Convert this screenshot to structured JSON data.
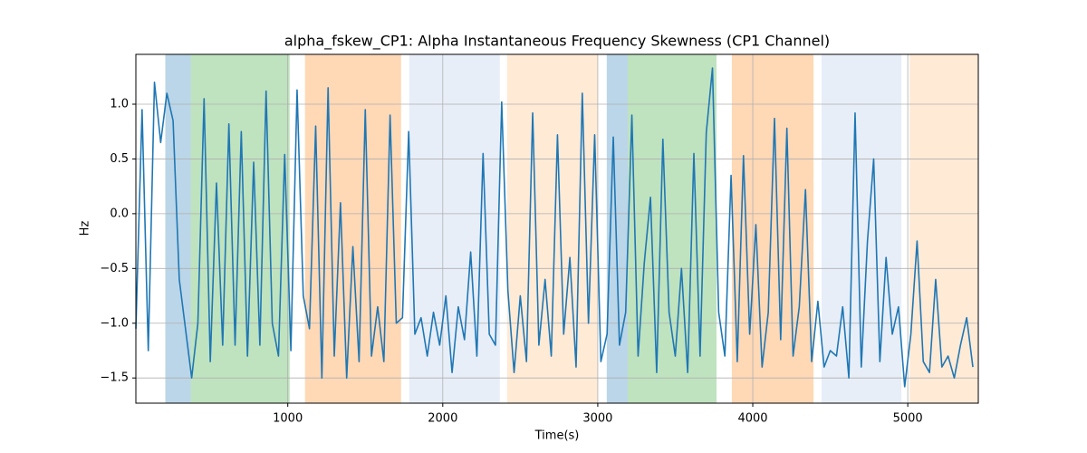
{
  "chart_data": {
    "type": "line",
    "title": "alpha_fskew_CP1: Alpha Instantaneous Frequency Skewness (CP1 Channel)",
    "xlabel": "Time(s)",
    "ylabel": "Hz",
    "xlim": [
      20,
      5455
    ],
    "ylim": [
      -1.73,
      1.455
    ],
    "xticks": [
      1000,
      2000,
      3000,
      4000,
      5000
    ],
    "yticks": [
      {
        "value": -1.5,
        "label": "−1.5"
      },
      {
        "value": -1.0,
        "label": "−1.0"
      },
      {
        "value": -0.5,
        "label": "−0.5"
      },
      {
        "value": 0.0,
        "label": "0.0"
      },
      {
        "value": 0.5,
        "label": "0.5"
      },
      {
        "value": 1.0,
        "label": "1.0"
      }
    ],
    "grid": true,
    "spans": [
      {
        "x": [
          210,
          374
        ],
        "color": "#1f77b4",
        "alpha": 0.3
      },
      {
        "x": [
          374,
          1012
        ],
        "color": "#2ca02c",
        "alpha": 0.3
      },
      {
        "x": [
          1111,
          1731
        ],
        "color": "#ff7f0e",
        "alpha": 0.3
      },
      {
        "x": [
          1784,
          2368
        ],
        "color": "#aec7e8",
        "alpha": 0.3
      },
      {
        "x": [
          2415,
          3000
        ],
        "color": "#ffbb78",
        "alpha": 0.3
      },
      {
        "x": [
          3058,
          3193
        ],
        "color": "#1f77b4",
        "alpha": 0.3
      },
      {
        "x": [
          3193,
          3766
        ],
        "color": "#2ca02c",
        "alpha": 0.3
      },
      {
        "x": [
          3865,
          4392
        ],
        "color": "#ff7f0e",
        "alpha": 0.3
      },
      {
        "x": [
          4444,
          4959
        ],
        "color": "#aec7e8",
        "alpha": 0.3
      },
      {
        "x": [
          5012,
          5455
        ],
        "color": "#ffbb78",
        "alpha": 0.3
      }
    ],
    "color": "#1f77b4",
    "x": [
      20,
      60,
      100,
      140,
      180,
      220,
      260,
      300,
      340,
      380,
      420,
      460,
      500,
      540,
      580,
      620,
      660,
      700,
      740,
      780,
      820,
      860,
      900,
      940,
      980,
      1020,
      1060,
      1100,
      1140,
      1180,
      1220,
      1260,
      1300,
      1340,
      1380,
      1420,
      1460,
      1500,
      1540,
      1580,
      1620,
      1660,
      1700,
      1740,
      1780,
      1820,
      1860,
      1900,
      1940,
      1980,
      2020,
      2060,
      2100,
      2140,
      2180,
      2220,
      2260,
      2300,
      2340,
      2380,
      2420,
      2460,
      2500,
      2540,
      2580,
      2620,
      2660,
      2700,
      2740,
      2780,
      2820,
      2860,
      2900,
      2940,
      2980,
      3020,
      3060,
      3100,
      3140,
      3180,
      3220,
      3260,
      3300,
      3340,
      3380,
      3420,
      3460,
      3500,
      3540,
      3580,
      3620,
      3660,
      3700,
      3740,
      3780,
      3820,
      3860,
      3900,
      3940,
      3980,
      4020,
      4060,
      4100,
      4140,
      4180,
      4220,
      4260,
      4300,
      4340,
      4380,
      4420,
      4460,
      4500,
      4540,
      4580,
      4620,
      4660,
      4700,
      4740,
      4780,
      4820,
      4860,
      4900,
      4940,
      4980,
      5020,
      5060,
      5100,
      5140,
      5180,
      5220,
      5260,
      5300,
      5340,
      5380,
      5420
    ],
    "values": [
      -1.05,
      0.95,
      -1.25,
      1.2,
      0.65,
      1.1,
      0.85,
      -0.6,
      -1.05,
      -1.5,
      -1.0,
      1.05,
      -1.35,
      0.28,
      -1.2,
      0.82,
      -1.2,
      0.75,
      -1.3,
      0.47,
      -1.2,
      1.12,
      -1.0,
      -1.3,
      0.54,
      -1.25,
      1.13,
      -0.75,
      -1.05,
      0.8,
      -1.5,
      1.15,
      -1.3,
      0.1,
      -1.5,
      -0.3,
      -1.35,
      0.95,
      -1.3,
      -0.85,
      -1.35,
      0.9,
      -1.0,
      -0.95,
      0.75,
      -1.1,
      -0.95,
      -1.3,
      -0.9,
      -1.2,
      -0.75,
      -1.45,
      -0.85,
      -1.15,
      -0.35,
      -1.3,
      0.55,
      -1.1,
      -1.2,
      1.02,
      -0.7,
      -1.45,
      -0.75,
      -1.35,
      0.92,
      -1.2,
      -0.6,
      -1.3,
      0.72,
      -1.1,
      -0.4,
      -1.4,
      1.1,
      -1.0,
      0.72,
      -1.35,
      -1.1,
      0.7,
      -1.2,
      -0.9,
      0.9,
      -1.3,
      -0.45,
      0.15,
      -1.45,
      0.68,
      -0.9,
      -1.3,
      -0.5,
      -1.45,
      0.55,
      -1.3,
      0.74,
      1.33,
      -0.9,
      -1.3,
      0.35,
      -1.35,
      0.53,
      -1.1,
      -0.1,
      -1.4,
      -0.9,
      0.87,
      -1.15,
      0.78,
      -1.3,
      -0.85,
      0.22,
      -1.35,
      -0.8,
      -1.4,
      -1.25,
      -1.3,
      -0.85,
      -1.5,
      0.92,
      -1.4,
      -0.25,
      0.5,
      -1.35,
      -0.4,
      -1.1,
      -0.85,
      -1.58,
      -1.1,
      -0.25,
      -1.35,
      -1.45,
      -0.6,
      -1.4,
      -1.3,
      -1.5,
      -1.2,
      -0.95,
      -1.4
    ]
  }
}
